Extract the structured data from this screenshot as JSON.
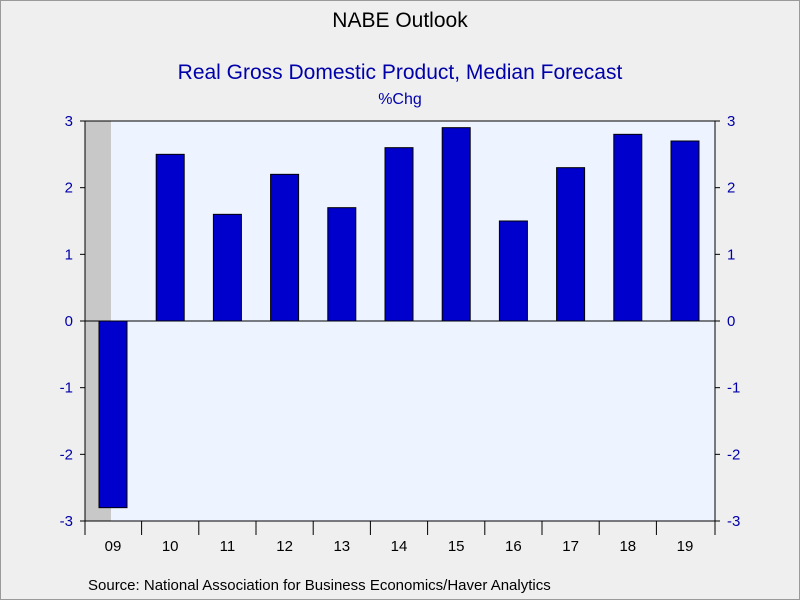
{
  "chart_data": {
    "type": "bar",
    "title": "NABE Outlook",
    "subtitle": "Real Gross Domestic Product, Median Forecast",
    "ylabel": "%Chg",
    "categories": [
      "09",
      "10",
      "11",
      "12",
      "13",
      "14",
      "15",
      "16",
      "17",
      "18",
      "19"
    ],
    "values": [
      -2.8,
      2.5,
      1.6,
      2.2,
      1.7,
      2.6,
      2.9,
      1.5,
      2.3,
      2.8,
      2.7
    ],
    "ylim": [
      -3,
      3
    ],
    "yticks": [
      "3",
      "2",
      "1",
      "0",
      "-1",
      "-2",
      "-3"
    ],
    "recession_shading": [
      "09"
    ],
    "source": "Source:  National Association for Business Economics/Haver Analytics",
    "colors": {
      "bar": "#0000cc",
      "plot_bg": "#eef4ff",
      "shade": "#c8c8c8",
      "axis_text": "#0000aa"
    }
  }
}
